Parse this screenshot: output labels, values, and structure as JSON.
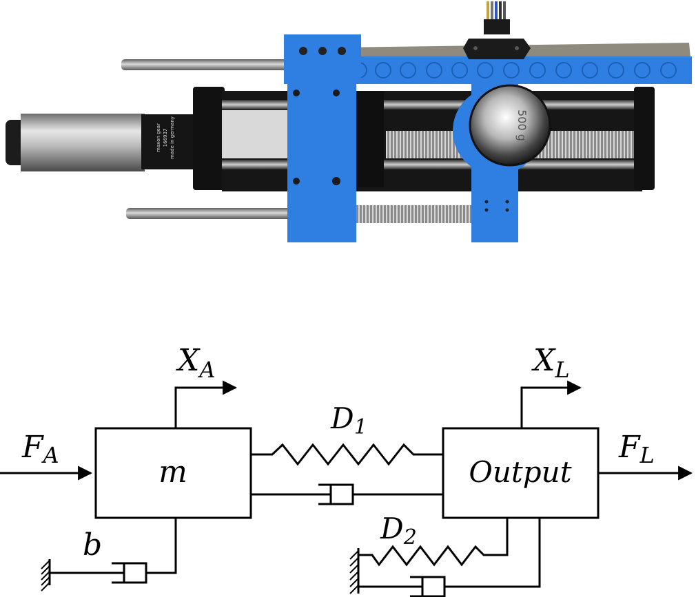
{
  "photo": {
    "motor_text_1": "maxon gear",
    "motor_text_2": "166937",
    "motor_text_3": "made in germany",
    "weight_marking": "500 g"
  },
  "diagram": {
    "labels": {
      "xa_main": "X",
      "xa_sub": "A",
      "xl_main": "X",
      "xl_sub": "L",
      "fa_main": "F",
      "fa_sub": "A",
      "fl_main": "F",
      "fl_sub": "L",
      "mass": "m",
      "output": "Output",
      "d1_main": "D",
      "d1_sub": "1",
      "d2_main": "D",
      "d2_sub": "2",
      "damping": "b"
    }
  }
}
